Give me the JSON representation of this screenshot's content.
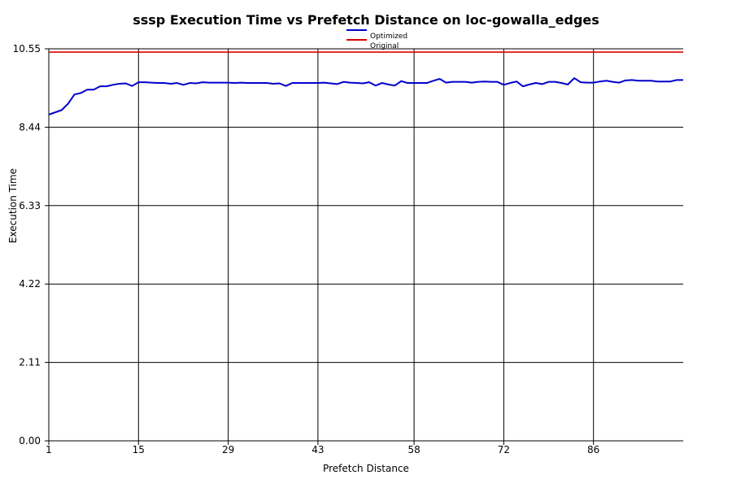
{
  "chart_data": {
    "type": "line",
    "title": "sssp Execution Time vs Prefetch Distance on loc-gowalla_edges",
    "xlabel": "Prefetch Distance",
    "ylabel": "Execution Time",
    "xlim": [
      1,
      100
    ],
    "ylim": [
      0,
      10.55
    ],
    "x_ticks": [
      1,
      15,
      29,
      43,
      58,
      72,
      86
    ],
    "y_ticks": [
      0.0,
      2.11,
      4.22,
      6.33,
      8.44,
      10.55
    ],
    "y_tick_labels": [
      "0.00",
      "2.11",
      "4.22",
      "6.33",
      "8.44",
      "10.55"
    ],
    "grid": true,
    "legend_position": "top-center",
    "series": [
      {
        "name": "Optimized",
        "color": "#0000cc",
        "values": [
          8.78,
          8.84,
          8.9,
          9.07,
          9.32,
          9.36,
          9.45,
          9.45,
          9.54,
          9.54,
          9.58,
          9.61,
          9.62,
          9.55,
          9.65,
          9.65,
          9.64,
          9.63,
          9.63,
          9.61,
          9.63,
          9.58,
          9.63,
          9.62,
          9.65,
          9.64,
          9.64,
          9.64,
          9.64,
          9.63,
          9.64,
          9.63,
          9.63,
          9.63,
          9.63,
          9.61,
          9.62,
          9.55,
          9.63,
          9.63,
          9.63,
          9.63,
          9.63,
          9.64,
          9.62,
          9.6,
          9.66,
          9.64,
          9.63,
          9.62,
          9.65,
          9.56,
          9.63,
          9.59,
          9.56,
          9.68,
          9.63,
          9.63,
          9.63,
          9.63,
          9.69,
          9.74,
          9.64,
          9.66,
          9.66,
          9.66,
          9.64,
          9.66,
          9.67,
          9.66,
          9.66,
          9.58,
          9.63,
          9.67,
          9.54,
          9.59,
          9.63,
          9.6,
          9.66,
          9.66,
          9.63,
          9.59,
          9.76,
          9.65,
          9.64,
          9.64,
          9.67,
          9.69,
          9.66,
          9.64,
          9.7,
          9.71,
          9.69,
          9.69,
          9.69,
          9.67,
          9.67,
          9.67,
          9.71,
          9.71
        ]
      },
      {
        "name": "Original",
        "color": "#dd0000",
        "values": [
          10.46,
          10.46,
          10.46,
          10.46,
          10.46,
          10.46,
          10.46,
          10.46,
          10.46,
          10.46,
          10.46,
          10.46,
          10.46,
          10.46,
          10.46,
          10.46,
          10.46,
          10.46,
          10.46,
          10.46,
          10.46,
          10.46,
          10.46,
          10.46,
          10.46,
          10.46,
          10.46,
          10.46,
          10.46,
          10.46,
          10.46,
          10.46,
          10.46,
          10.46,
          10.46,
          10.46,
          10.46,
          10.46,
          10.46,
          10.46,
          10.46,
          10.46,
          10.46,
          10.46,
          10.46,
          10.46,
          10.46,
          10.46,
          10.46,
          10.46,
          10.46,
          10.46,
          10.46,
          10.46,
          10.46,
          10.46,
          10.46,
          10.46,
          10.46,
          10.46,
          10.46,
          10.46,
          10.46,
          10.46,
          10.46,
          10.46,
          10.46,
          10.46,
          10.46,
          10.46,
          10.46,
          10.46,
          10.46,
          10.46,
          10.46,
          10.46,
          10.46,
          10.46,
          10.46,
          10.46,
          10.46,
          10.46,
          10.46,
          10.46,
          10.46,
          10.46,
          10.46,
          10.46,
          10.46,
          10.46,
          10.46,
          10.46,
          10.46,
          10.46,
          10.46,
          10.46,
          10.46,
          10.46,
          10.46,
          10.46
        ]
      }
    ]
  }
}
